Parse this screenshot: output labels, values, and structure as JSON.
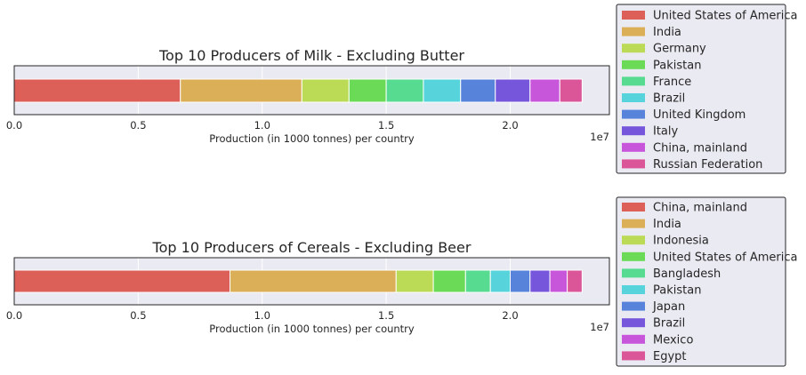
{
  "chart_data": [
    {
      "type": "bar",
      "orientation": "horizontal-stacked",
      "title": "Top 10 Producers of Milk - Excluding Butter",
      "xlabel": "Production (in 1000 tonnes) per country",
      "x_offset_label": "1e7",
      "x_ticks": [
        0,
        0.5,
        1.0,
        1.5,
        2.0
      ],
      "x_tick_labels": [
        "0.0",
        "0.5",
        "1.0",
        "1.5",
        "2.0"
      ],
      "xlim": [
        0,
        2.4
      ],
      "grid": true,
      "legend_position": "right",
      "series": [
        {
          "name": "United States of America",
          "value": 0.67
        },
        {
          "name": "India",
          "value": 0.49
        },
        {
          "name": "Germany",
          "value": 0.19
        },
        {
          "name": "Pakistan",
          "value": 0.15
        },
        {
          "name": "France",
          "value": 0.15
        },
        {
          "name": "Brazil",
          "value": 0.15
        },
        {
          "name": "United Kingdom",
          "value": 0.14
        },
        {
          "name": "Italy",
          "value": 0.14
        },
        {
          "name": "China, mainland",
          "value": 0.12
        },
        {
          "name": "Russian Federation",
          "value": 0.09
        }
      ]
    },
    {
      "type": "bar",
      "orientation": "horizontal-stacked",
      "title": "Top 10 Producers of Cereals - Excluding Beer",
      "xlabel": "Production (in 1000 tonnes) per country",
      "x_offset_label": "1e7",
      "x_ticks": [
        0,
        0.5,
        1.0,
        1.5,
        2.0
      ],
      "x_tick_labels": [
        "0.0",
        "0.5",
        "1.0",
        "1.5",
        "2.0"
      ],
      "xlim": [
        0,
        2.4
      ],
      "grid": true,
      "legend_position": "right",
      "series": [
        {
          "name": "China, mainland",
          "value": 0.87
        },
        {
          "name": "India",
          "value": 0.67
        },
        {
          "name": "Indonesia",
          "value": 0.15
        },
        {
          "name": "United States of America",
          "value": 0.13
        },
        {
          "name": "Bangladesh",
          "value": 0.1
        },
        {
          "name": "Pakistan",
          "value": 0.08
        },
        {
          "name": "Japan",
          "value": 0.08
        },
        {
          "name": "Brazil",
          "value": 0.08
        },
        {
          "name": "Mexico",
          "value": 0.07
        },
        {
          "name": "Egypt",
          "value": 0.06
        }
      ]
    }
  ],
  "colors": [
    "#dc5f58",
    "#dbaf57",
    "#bbdb57",
    "#6bdb57",
    "#57db90",
    "#57d4db",
    "#5783db",
    "#7656db",
    "#c756db",
    "#db5699"
  ],
  "axes_background": "#eaeaf2",
  "gridline_color": "#ffffff"
}
